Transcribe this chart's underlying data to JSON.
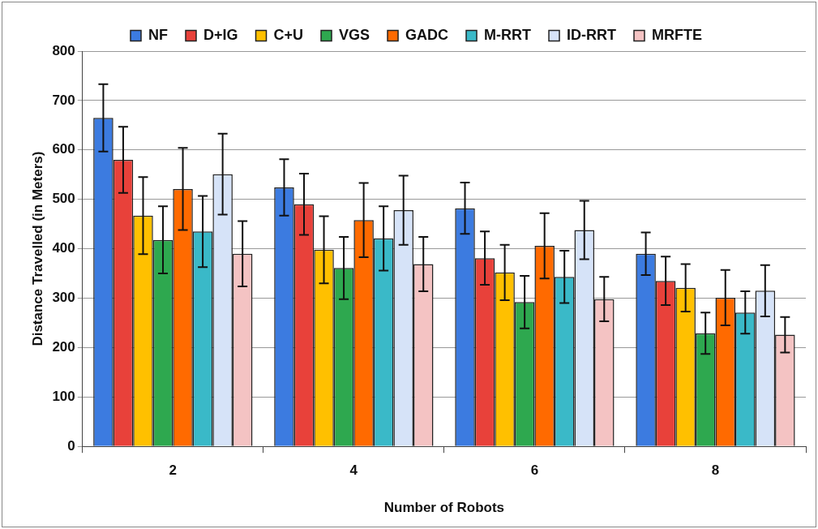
{
  "chart_data": {
    "type": "bar",
    "xlabel": "Number of Robots",
    "ylabel": "Distance Travelled (in Meters)",
    "categories": [
      "2",
      "4",
      "6",
      "8"
    ],
    "series": [
      {
        "name": "NF",
        "color": "#3c7be0",
        "values": [
          665,
          524,
          482,
          390
        ],
        "errors": [
          68,
          57,
          52,
          43
        ]
      },
      {
        "name": "D+IG",
        "color": "#e8413a",
        "values": [
          580,
          490,
          381,
          335
        ],
        "errors": [
          67,
          62,
          54,
          49
        ]
      },
      {
        "name": "C+U",
        "color": "#ffc000",
        "values": [
          467,
          398,
          352,
          321
        ],
        "errors": [
          78,
          68,
          56,
          48
        ]
      },
      {
        "name": "VGS",
        "color": "#2ea84f",
        "values": [
          418,
          361,
          292,
          229
        ],
        "errors": [
          68,
          63,
          53,
          42
        ]
      },
      {
        "name": "GADC",
        "color": "#ff6a00",
        "values": [
          521,
          458,
          406,
          301
        ],
        "errors": [
          83,
          75,
          66,
          56
        ]
      },
      {
        "name": "M-RRT",
        "color": "#3ab9c8",
        "values": [
          435,
          421,
          343,
          271
        ],
        "errors": [
          72,
          65,
          53,
          43
        ]
      },
      {
        "name": "ID-RRT",
        "color": "#d6e3f8",
        "values": [
          551,
          478,
          438,
          315
        ],
        "errors": [
          82,
          70,
          59,
          52
        ]
      },
      {
        "name": "MRFTE",
        "color": "#f4c3c3",
        "values": [
          390,
          369,
          298,
          226
        ],
        "errors": [
          66,
          55,
          45,
          36
        ]
      }
    ],
    "ylim": [
      0,
      800
    ],
    "yticks": [
      0,
      100,
      200,
      300,
      400,
      500,
      600,
      700,
      800
    ],
    "grid": "y",
    "legend": "top"
  }
}
